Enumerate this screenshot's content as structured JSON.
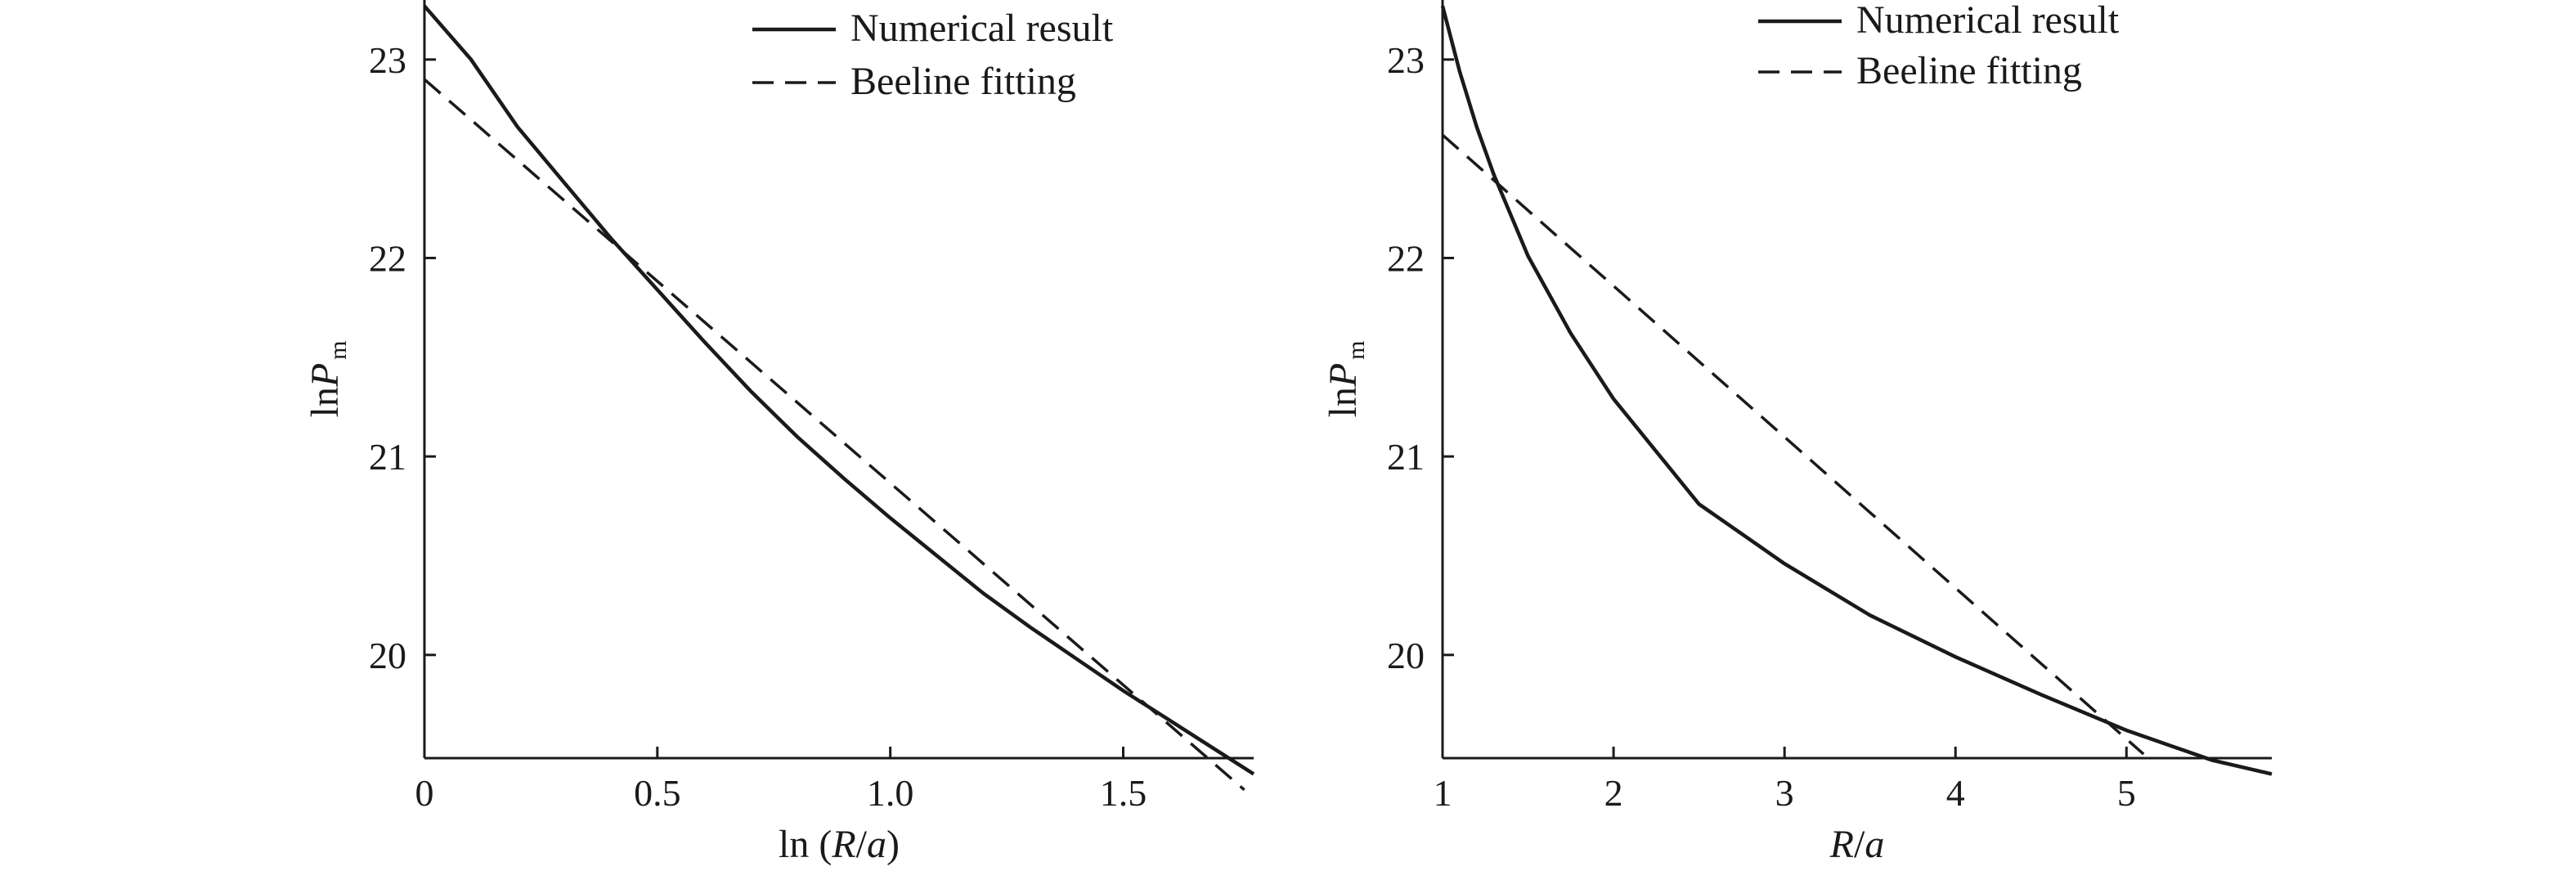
{
  "chart_data": [
    {
      "type": "line",
      "xlabel": "ln (R/a)",
      "xlabel_parts": [
        {
          "text": "ln (",
          "italic": false
        },
        {
          "text": "R",
          "italic": true
        },
        {
          "text": "/",
          "italic": false
        },
        {
          "text": "a",
          "italic": true
        },
        {
          "text": ")",
          "italic": false
        }
      ],
      "ylabel": "lnPm",
      "ylabel_parts": {
        "prefix": "ln",
        "main": "P",
        "subscript": "m"
      },
      "xlim": [
        0,
        1.78
      ],
      "ylim": [
        19.48,
        23.3
      ],
      "xticks": [
        0,
        0.5,
        1.0,
        1.5
      ],
      "xtick_labels": [
        "0",
        "0.5",
        "1.0",
        "1.5"
      ],
      "yticks": [
        20,
        21,
        22,
        23
      ],
      "ytick_labels": [
        "20",
        "21",
        "22",
        "23"
      ],
      "legend_position": "top-right",
      "series": [
        {
          "name": "Numerical result",
          "style": "solid",
          "x": [
            0,
            0.1,
            0.2,
            0.3,
            0.4,
            0.5,
            0.6,
            0.7,
            0.8,
            0.9,
            1.0,
            1.1,
            1.2,
            1.3,
            1.4,
            1.5,
            1.6,
            1.7,
            1.78
          ],
          "y": [
            23.27,
            23.0,
            22.66,
            22.38,
            22.1,
            21.84,
            21.58,
            21.33,
            21.1,
            20.89,
            20.69,
            20.5,
            20.31,
            20.14,
            19.98,
            19.82,
            19.67,
            19.52,
            19.4
          ]
        },
        {
          "name": "Beeline fitting",
          "style": "dashed",
          "x": [
            0,
            1.76
          ],
          "y": [
            22.9,
            19.32
          ]
        }
      ]
    },
    {
      "type": "line",
      "xlabel": "R/a",
      "xlabel_parts": [
        {
          "text": "R",
          "italic": true
        },
        {
          "text": "/",
          "italic": false
        },
        {
          "text": "a",
          "italic": true
        }
      ],
      "ylabel": "lnPm",
      "ylabel_parts": {
        "prefix": "ln",
        "main": "P",
        "subscript": "m"
      },
      "xlim": [
        1,
        5.85
      ],
      "ylim": [
        19.48,
        23.3
      ],
      "xticks": [
        1,
        2,
        3,
        4,
        5
      ],
      "xtick_labels": [
        "1",
        "2",
        "3",
        "4",
        "5"
      ],
      "yticks": [
        20,
        21,
        22,
        23
      ],
      "ytick_labels": [
        "20",
        "21",
        "22",
        "23"
      ],
      "legend_position": "top-right",
      "series": [
        {
          "name": "Numerical result",
          "style": "solid",
          "x": [
            1,
            1.1,
            1.2,
            1.3,
            1.5,
            1.75,
            2.0,
            2.5,
            3.0,
            3.5,
            4.0,
            4.5,
            5.0,
            5.5,
            5.85
          ],
          "y": [
            23.27,
            22.94,
            22.66,
            22.42,
            22.01,
            21.62,
            21.29,
            20.76,
            20.46,
            20.2,
            19.99,
            19.8,
            19.62,
            19.47,
            19.4
          ]
        },
        {
          "name": "Beeline fitting",
          "style": "dashed",
          "x": [
            1,
            5.1
          ],
          "y": [
            22.62,
            19.5
          ]
        }
      ]
    }
  ]
}
